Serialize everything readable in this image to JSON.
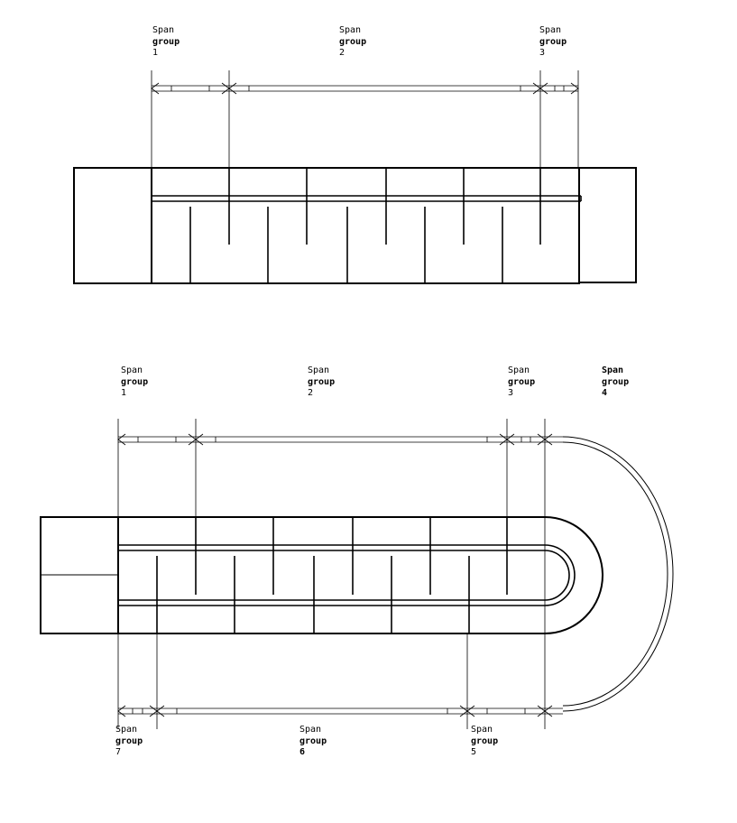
{
  "diagram1": {
    "labels": [
      {
        "word1": "Span",
        "word2": "group",
        "num": "1"
      },
      {
        "word1": "Span",
        "word2": "group",
        "num": "2"
      },
      {
        "word1": "Span",
        "word2": "group",
        "num": "3"
      }
    ]
  },
  "diagram2": {
    "top_labels": [
      {
        "word1": "Span",
        "word2": "group",
        "num": "1"
      },
      {
        "word1": "Span",
        "word2": "group",
        "num": "2"
      },
      {
        "word1": "Span",
        "word2": "group",
        "num": "3"
      },
      {
        "word1": "Span",
        "word2": "group",
        "num": "4"
      }
    ],
    "bottom_labels": [
      {
        "word1": "Span",
        "word2": "group",
        "num": "7"
      },
      {
        "word1": "Span",
        "word2": "group",
        "num": "6"
      },
      {
        "word1": "Span",
        "word2": "group",
        "num": "5"
      }
    ]
  }
}
